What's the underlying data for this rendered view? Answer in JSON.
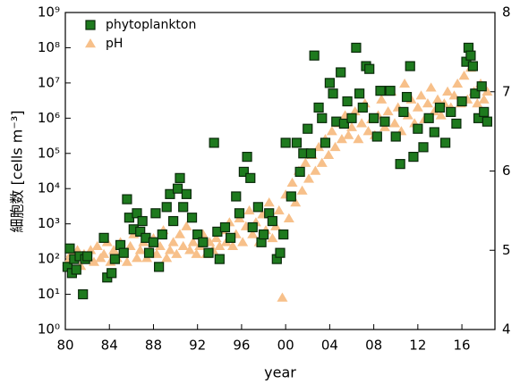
{
  "chart_data": {
    "type": "scatter",
    "xlabel": "year",
    "ylabel": "細胞数 [cells m⁻³]",
    "yscale": "log",
    "xlim": [
      1980,
      2019
    ],
    "xticks": [
      {
        "value": 1980,
        "label": "80"
      },
      {
        "value": 1984,
        "label": "84"
      },
      {
        "value": 1988,
        "label": "88"
      },
      {
        "value": 1992,
        "label": "92"
      },
      {
        "value": 1996,
        "label": "96"
      },
      {
        "value": 2000,
        "label": "00"
      },
      {
        "value": 2004,
        "label": "04"
      },
      {
        "value": 2008,
        "label": "08"
      },
      {
        "value": 2012,
        "label": "12"
      },
      {
        "value": 2016,
        "label": "16"
      }
    ],
    "ylim": [
      1,
      1000000000
    ],
    "yticks": [
      {
        "value": 1,
        "label": "10⁰"
      },
      {
        "value": 10,
        "label": "10¹"
      },
      {
        "value": 100,
        "label": "10²"
      },
      {
        "value": 1000,
        "label": "10³"
      },
      {
        "value": 10000,
        "label": "10⁴"
      },
      {
        "value": 100000,
        "label": "10⁵"
      },
      {
        "value": 1000000,
        "label": "10⁶"
      },
      {
        "value": 10000000,
        "label": "10⁷"
      },
      {
        "value": 100000000,
        "label": "10⁸"
      },
      {
        "value": 1000000000,
        "label": "10⁹"
      }
    ],
    "y2lim": [
      4,
      8
    ],
    "y2ticks": [
      4,
      5,
      6,
      7,
      8
    ],
    "legend": "upper left",
    "series": [
      {
        "name": "phytoplankton",
        "color": "#1e7a1e",
        "edgecolor": "#0a2a0a",
        "marker": "square",
        "x": [
          1980.2,
          1980.4,
          1980.6,
          1980.8,
          1981,
          1981.3,
          1981.6,
          1981.8,
          1982,
          1983.5,
          1983.8,
          1984.2,
          1984.5,
          1985,
          1985.3,
          1985.6,
          1985.8,
          1986.2,
          1986.5,
          1986.8,
          1987,
          1987.3,
          1987.6,
          1988,
          1988.2,
          1988.5,
          1988.8,
          1989.2,
          1989.5,
          1989.8,
          1990.2,
          1990.4,
          1990.7,
          1991,
          1991.5,
          1992,
          1992.5,
          1993,
          1993.5,
          1993.8,
          1994,
          1994.5,
          1995,
          1995.5,
          1995.8,
          1996.2,
          1996.5,
          1996.8,
          1997,
          1997.5,
          1997.8,
          1998,
          1998.5,
          1998.8,
          1999.2,
          1999.5,
          1999.8,
          2000,
          2000.5,
          2001,
          2001.3,
          2001.6,
          2002,
          2002.3,
          2002.6,
          2003,
          2003.3,
          2003.6,
          2004,
          2004.3,
          2004.6,
          2005,
          2005.3,
          2005.6,
          2006,
          2006.4,
          2006.7,
          2007,
          2007.3,
          2007.6,
          2008,
          2008.3,
          2008.6,
          2009,
          2009.5,
          2010,
          2010.4,
          2010.7,
          2011,
          2011.3,
          2011.6,
          2012,
          2012.5,
          2013,
          2013.5,
          2014,
          2014.5,
          2015,
          2015.5,
          2016,
          2016.4,
          2016.6,
          2016.8,
          2017,
          2017.2,
          2017.5,
          2017.8,
          2018,
          2018.3
        ],
        "values": [
          60,
          200,
          40,
          100,
          50,
          120,
          10,
          100,
          120,
          400,
          30,
          40,
          100,
          250,
          150,
          5000,
          1500,
          700,
          2000,
          600,
          1200,
          400,
          150,
          300,
          2000,
          60,
          500,
          3000,
          7000,
          1200,
          10000,
          20000,
          3000,
          7000,
          1500,
          500,
          300,
          150,
          200000,
          600,
          100,
          800,
          400,
          6000,
          2000,
          30000,
          80000,
          20000,
          800,
          3000,
          300,
          500,
          2000,
          1200,
          100,
          150,
          500,
          200000,
          6000,
          200000,
          30000,
          100000,
          500000,
          100000,
          60000000,
          2000000,
          1000000,
          200000,
          10000000,
          5000000,
          800000,
          20000000,
          700000,
          3000000,
          1000000,
          100000000,
          5000000,
          2000000,
          30000000,
          25000000,
          1000000,
          300000,
          6000000,
          800000,
          6000000,
          300000,
          50000,
          1500000,
          4000000,
          30000000,
          80000,
          500000,
          150000,
          1000000,
          400000,
          2000000,
          200000,
          1500000,
          700000,
          3000000,
          40000000,
          100000000,
          60000000,
          30000000,
          5000000,
          1000000,
          8000000,
          1500000,
          800000
        ]
      },
      {
        "name": "pH",
        "color": "#f7c08a",
        "marker": "triangle",
        "axis": "y2",
        "x": [
          1980.2,
          1980.5,
          1980.8,
          1981.1,
          1981.4,
          1981.7,
          1982,
          1982.3,
          1982.6,
          1982.9,
          1983.2,
          1983.5,
          1983.8,
          1984.1,
          1984.4,
          1984.7,
          1985,
          1985.3,
          1985.6,
          1985.9,
          1986.2,
          1986.5,
          1986.8,
          1987.1,
          1987.4,
          1987.7,
          1988,
          1988.3,
          1988.6,
          1988.9,
          1989.2,
          1989.5,
          1989.8,
          1990.1,
          1990.4,
          1990.7,
          1991,
          1991.3,
          1991.6,
          1991.9,
          1992.2,
          1992.5,
          1992.8,
          1993.1,
          1993.4,
          1993.7,
          1994,
          1994.3,
          1994.6,
          1994.9,
          1995.2,
          1995.5,
          1995.8,
          1996.1,
          1996.4,
          1996.7,
          1997,
          1997.3,
          1997.6,
          1997.9,
          1998.2,
          1998.5,
          1998.8,
          1999.1,
          1999.4,
          1999.7,
          2000,
          2000.3,
          2000.6,
          2000.9,
          2001.2,
          2001.5,
          2001.8,
          2002.1,
          2002.4,
          2002.7,
          2003,
          2003.3,
          2003.6,
          2003.9,
          2004.2,
          2004.5,
          2004.8,
          2005.1,
          2005.4,
          2005.7,
          2006,
          2006.3,
          2006.6,
          2006.9,
          2007.2,
          2007.5,
          2007.8,
          2008.1,
          2008.4,
          2008.7,
          2009,
          2009.3,
          2009.6,
          2009.9,
          2010.2,
          2010.5,
          2010.8,
          2011.1,
          2011.4,
          2011.7,
          2012,
          2012.3,
          2012.6,
          2012.9,
          2013.2,
          2013.5,
          2013.8,
          2014.1,
          2014.4,
          2014.7,
          2015,
          2015.3,
          2015.6,
          2015.9,
          2016.2,
          2016.5,
          2016.8,
          2017.1,
          2017.4,
          2017.7,
          2018,
          2018.3
        ],
        "values": [
          4.85,
          4.95,
          4.9,
          5,
          4.8,
          4.95,
          4.9,
          5,
          4.85,
          5.05,
          4.9,
          4.95,
          5.1,
          4.85,
          5,
          4.9,
          5.1,
          4.95,
          4.85,
          5.05,
          5.2,
          4.9,
          5,
          5.1,
          4.9,
          5,
          5.15,
          4.95,
          5.05,
          5.25,
          4.9,
          5,
          5.1,
          4.95,
          5.2,
          5.05,
          5.3,
          5,
          5.1,
          4.95,
          5.05,
          5.2,
          4.95,
          5.1,
          5,
          5.15,
          5.05,
          5.25,
          5.1,
          5.35,
          5.05,
          5.2,
          5.4,
          5.1,
          5.3,
          5.5,
          5.2,
          5.35,
          5.1,
          5.45,
          5.25,
          5.6,
          5.15,
          5.3,
          5.5,
          4.4,
          5.7,
          5.4,
          5.85,
          5.6,
          6,
          5.75,
          6.1,
          5.9,
          6.2,
          6,
          6.3,
          6.1,
          6.4,
          6.2,
          6.5,
          6.3,
          6.6,
          6.4,
          6.7,
          6.45,
          6.55,
          6.75,
          6.4,
          6.6,
          6.85,
          6.5,
          6.65,
          6.45,
          6.7,
          6.9,
          6.55,
          6.75,
          7,
          6.6,
          6.8,
          6.5,
          7.1,
          6.7,
          6.9,
          6.6,
          6.8,
          6.95,
          6.65,
          6.85,
          7.05,
          6.75,
          6.9,
          6.7,
          6.85,
          7,
          6.8,
          6.95,
          7.1,
          6.85,
          7.2,
          6.9,
          7.3,
          7,
          6.85,
          7.1,
          6.9,
          7
        ]
      }
    ]
  }
}
